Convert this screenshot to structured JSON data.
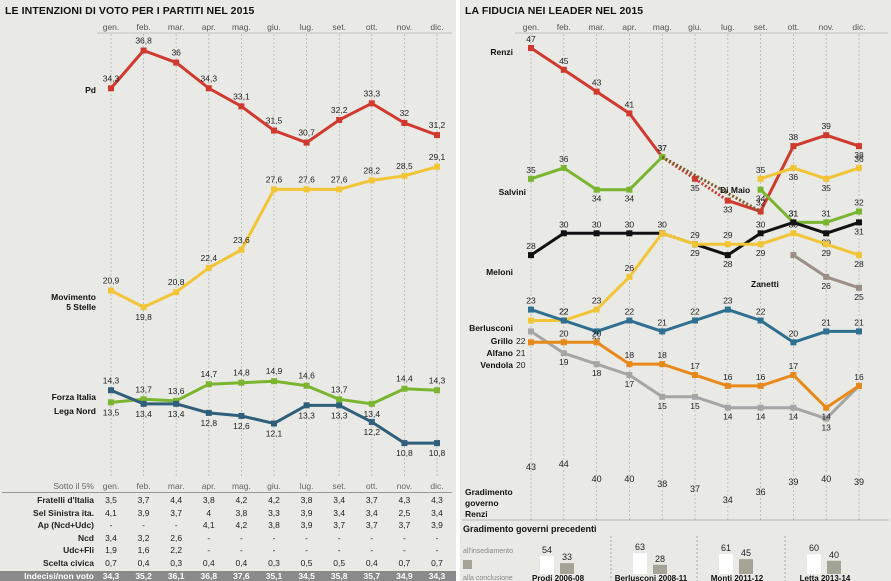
{
  "left_title": "LE INTENZIONI DI VOTO PER I PARTITI NEL 2015",
  "right_title": "LA FIDUCIA NEI LEADER NEL 2015",
  "months": [
    "gen.",
    "feb.",
    "mar.",
    "apr.",
    "mag.",
    "giu.",
    "lug.",
    "set.",
    "ott.",
    "nov.",
    "dic."
  ],
  "chart_data": [
    {
      "type": "line",
      "title": "LE INTENZIONI DI VOTO PER I PARTITI NEL 2015",
      "categories": [
        "gen.",
        "feb.",
        "mar.",
        "apr.",
        "mag.",
        "giu.",
        "lug.",
        "set.",
        "ott.",
        "nov.",
        "dic."
      ],
      "series": [
        {
          "name": "Pd",
          "color": "#d03a2e",
          "values": [
            34.3,
            36.8,
            36,
            34.3,
            33.1,
            31.5,
            30.7,
            32.2,
            33.3,
            32,
            31.2
          ],
          "labels": [
            "34,3",
            "36,8",
            "36",
            "34,3",
            "33,1",
            "31,5",
            "30,7",
            "32,2",
            "33,3",
            "32",
            "31,2"
          ]
        },
        {
          "name": "Movimento 5 Stelle",
          "color": "#f2c536",
          "values": [
            20.9,
            19.8,
            20.8,
            22.4,
            23.6,
            27.6,
            27.6,
            27.6,
            28.2,
            28.5,
            29.1
          ],
          "labels": [
            "20,9",
            "19,8",
            "20,8",
            "22,4",
            "23,6",
            "27,6",
            "27,6",
            "27,6",
            "28,2",
            "28,5",
            "29,1"
          ]
        },
        {
          "name": "Forza Italia",
          "color": "#7ab530",
          "values": [
            13.5,
            13.7,
            13.6,
            14.7,
            14.8,
            14.9,
            14.6,
            13.7,
            13.4,
            14.4,
            14.3
          ],
          "labels": [
            "13,5",
            "13,7",
            "13,6",
            "14,7",
            "14,8",
            "14,9",
            "14,6",
            "13,7",
            "13,4",
            "14,4",
            "14,3"
          ]
        },
        {
          "name": "Lega Nord",
          "color": "#2f5f7a",
          "values": [
            14.3,
            13.4,
            13.4,
            12.8,
            12.6,
            12.1,
            13.3,
            13.3,
            12.2,
            10.8,
            10.8
          ],
          "labels": [
            "14,3",
            "13,4",
            "13,4",
            "12,8",
            "12,6",
            "12,1",
            "13,3",
            "13,3",
            "12,2",
            "10,8",
            "10,8"
          ]
        }
      ]
    },
    {
      "type": "line",
      "title": "LA FIDUCIA NEI LEADER NEL 2015",
      "categories": [
        "gen.",
        "feb.",
        "mar.",
        "apr.",
        "mag.",
        "giu.",
        "lug.",
        "set.",
        "ott.",
        "nov.",
        "dic."
      ],
      "series": [
        {
          "name": "Renzi",
          "color": "#d03a2e",
          "values": [
            47,
            45,
            43,
            41,
            37,
            35,
            33,
            32,
            38,
            39,
            38
          ]
        },
        {
          "name": "Salvini",
          "color": "#7ab530",
          "values": [
            35,
            36,
            34,
            34,
            37,
            null,
            null,
            34,
            31,
            31,
            32
          ]
        },
        {
          "name": "Di Maio",
          "color": "#f2c536",
          "values": [
            null,
            null,
            null,
            null,
            null,
            null,
            null,
            35,
            36,
            35,
            36
          ]
        },
        {
          "name": "Meloni",
          "color": "#111111",
          "values": [
            28,
            30,
            30,
            30,
            30,
            29,
            28,
            30,
            31,
            30,
            31
          ]
        },
        {
          "name": "Grillo",
          "color": "#f2c536",
          "values": [
            22,
            22,
            23,
            26,
            30,
            29,
            29,
            29,
            30,
            29,
            28
          ]
        },
        {
          "name": "Zanetti",
          "color": "#9b8e87",
          "values": [
            null,
            null,
            null,
            null,
            null,
            null,
            null,
            null,
            28,
            26,
            25
          ]
        },
        {
          "name": "Berlusconi",
          "color": "#2f6f8f",
          "values": [
            23,
            22,
            21,
            22,
            21,
            22,
            23,
            22,
            20,
            21,
            21
          ]
        },
        {
          "name": "Alfano",
          "color": "#a5a5a5",
          "values": [
            21,
            19,
            18,
            17,
            15,
            15,
            14,
            14,
            14,
            13,
            16
          ]
        },
        {
          "name": "Vendola",
          "color": "#e8891a",
          "values": [
            20,
            20,
            20,
            18,
            18,
            17,
            16,
            16,
            17,
            14,
            16
          ]
        }
      ],
      "gradimento_governo_renzi": {
        "label": "Gradimento governo Renzi",
        "values": [
          43,
          44,
          40,
          40,
          38,
          37,
          34,
          36,
          39,
          40,
          39
        ]
      }
    }
  ],
  "left_labels": {
    "pd": "Pd",
    "m5s_1": "Movimento",
    "m5s_2": "5 Stelle",
    "fi": "Forza Italia",
    "lega": "Lega Nord"
  },
  "table": {
    "header": "Sotto il 5%",
    "rows": [
      {
        "label": "Fratelli d'Italia",
        "values": [
          "3,5",
          "3,7",
          "4,4",
          "3,8",
          "4,2",
          "4,2",
          "3,8",
          "3,4",
          "3,7",
          "4,3",
          "4,3"
        ]
      },
      {
        "label": "Sel Sinistra ita.",
        "values": [
          "4,1",
          "3,9",
          "3,7",
          "4",
          "3,8",
          "3,3",
          "3,9",
          "3,4",
          "3,4",
          "2,5",
          "3,4"
        ]
      },
      {
        "label": "Ap (Ncd+Udc)",
        "values": [
          "-",
          "-",
          "-",
          "4,1",
          "4,2",
          "3,8",
          "3,9",
          "3,7",
          "3,7",
          "3,7",
          "3,9"
        ]
      },
      {
        "label": "Ncd",
        "values": [
          "3,4",
          "3,2",
          "2,6",
          "-",
          "-",
          "-",
          "-",
          "-",
          "-",
          "-",
          "-"
        ]
      },
      {
        "label": "Udc+Fli",
        "values": [
          "1,9",
          "1,6",
          "2,2",
          "-",
          "-",
          "-",
          "-",
          "-",
          "-",
          "-",
          "-"
        ]
      },
      {
        "label": "Scelta civica",
        "values": [
          "0,7",
          "0,4",
          "0,3",
          "0,4",
          "0,4",
          "0,3",
          "0,5",
          "0,5",
          "0,4",
          "0,7",
          "0,7"
        ]
      },
      {
        "label": "Indecisi/non voto",
        "values": [
          "34,3",
          "35,2",
          "36,1",
          "36,8",
          "37,6",
          "35,1",
          "34,5",
          "35,8",
          "35,7",
          "34,9",
          "34,3"
        ]
      }
    ]
  },
  "right_labels": {
    "renzi": "Renzi",
    "salvini": "Salvini",
    "dimaio": "Di Maio",
    "meloni": "Meloni",
    "zanetti": "Zanetti",
    "berlusconi": "Berlusconi",
    "grillo": "Grillo",
    "alfano": "Alfano",
    "vendola": "Vendola"
  },
  "gradimento": {
    "l1": "Gradimento",
    "l2": "governo",
    "l3": "Renzi"
  },
  "previous": {
    "title": "Gradimento governi precedenti",
    "insediamento": "all'insediamento",
    "conclusione": "alla conclusione",
    "governments": [
      {
        "name": "Prodi 2006-08",
        "start": 54,
        "end": 33
      },
      {
        "name": "Berlusconi 2008-11",
        "start": 63,
        "end": 28
      },
      {
        "name": "Monti 2011-12",
        "start": 61,
        "end": 45
      },
      {
        "name": "Letta 2013-14",
        "start": 60,
        "end": 40
      }
    ]
  }
}
